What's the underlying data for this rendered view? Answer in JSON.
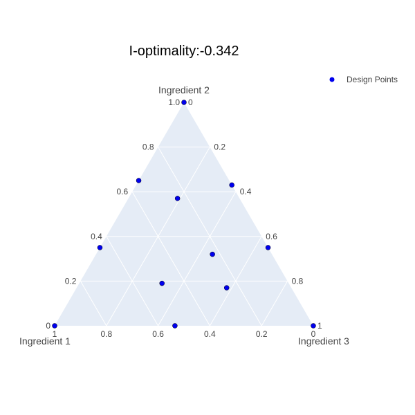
{
  "colors": {
    "plot_bg": "#e5ecf6",
    "grid": "#ffffff",
    "marker": "#0000ee",
    "marker_edge": "#000000"
  },
  "chart_data": {
    "type": "scatter",
    "subtype": "ternary",
    "title": "I-optimality:-0.342",
    "axes": {
      "a": "Ingredient 1",
      "b": "Ingredient 2",
      "c": "Ingredient 3"
    },
    "ticks": {
      "a": [
        "0",
        "0.2",
        "0.4",
        "0.6",
        "0.8",
        "1"
      ],
      "b": [
        "0",
        "0.2",
        "0.4",
        "0.6",
        "0.8",
        "1.0"
      ],
      "c": [
        "0",
        "0.2",
        "0.4",
        "0.6",
        "0.8",
        "1"
      ]
    },
    "tick_values": [
      0,
      0.2,
      0.4,
      0.6,
      0.8,
      1.0
    ],
    "legend": {
      "placement": "top-right",
      "entries": [
        "Design Points"
      ]
    },
    "grid": true,
    "series": [
      {
        "name": "Design Points",
        "points": [
          {
            "a": 0.0,
            "b": 1.0,
            "c": 0.0
          },
          {
            "a": 1.0,
            "b": 0.0,
            "c": 0.0
          },
          {
            "a": 0.0,
            "b": 0.0,
            "c": 1.0
          },
          {
            "a": 0.35,
            "b": 0.65,
            "c": 0.0
          },
          {
            "a": 0.65,
            "b": 0.35,
            "c": 0.0
          },
          {
            "a": 0.0,
            "b": 0.63,
            "c": 0.37
          },
          {
            "a": 0.0,
            "b": 0.35,
            "c": 0.65
          },
          {
            "a": 0.535,
            "b": 0.0,
            "c": 0.465
          },
          {
            "a": 0.24,
            "b": 0.57,
            "c": 0.19
          },
          {
            "a": 0.23,
            "b": 0.32,
            "c": 0.45
          },
          {
            "a": 0.49,
            "b": 0.19,
            "c": 0.32
          },
          {
            "a": 0.25,
            "b": 0.17,
            "c": 0.58
          }
        ]
      }
    ]
  }
}
